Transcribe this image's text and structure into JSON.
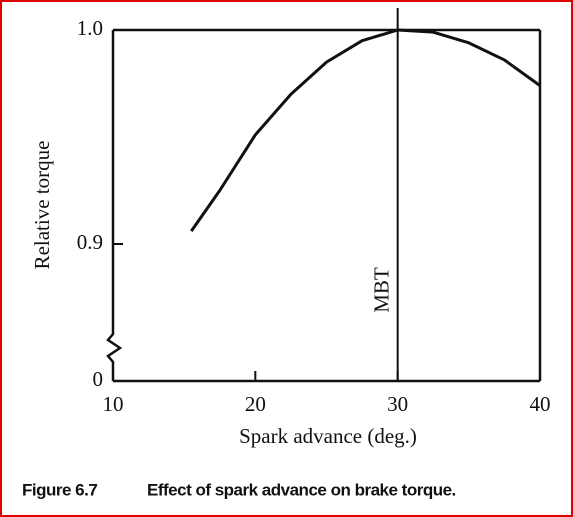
{
  "chart_data": {
    "type": "line",
    "xlabel": "Spark advance (deg.)",
    "ylabel": "Relative torque",
    "caption_label": "Figure 6.7",
    "caption": "Effect of spark advance on brake torque.",
    "x": [
      15.5,
      17.5,
      20,
      22.5,
      25,
      27.5,
      30,
      32.5,
      35,
      37.5,
      40
    ],
    "series": [
      {
        "color": "#111111",
        "values": [
          0.906,
          0.925,
          0.951,
          0.97,
          0.985,
          0.995,
          1.0,
          0.999,
          0.994,
          0.986,
          0.974
        ]
      }
    ],
    "xlim": [
      10,
      40
    ],
    "xticks": [
      10,
      20,
      30,
      40
    ],
    "ylim": [
      0,
      1.0
    ],
    "yticks": [
      0,
      0.9,
      {
        "value": 1.0,
        "label": "1.0"
      }
    ],
    "ybreak": [
      0,
      0.9
    ],
    "annotations": [
      {
        "text": "MBT",
        "x": 30
      }
    ]
  }
}
